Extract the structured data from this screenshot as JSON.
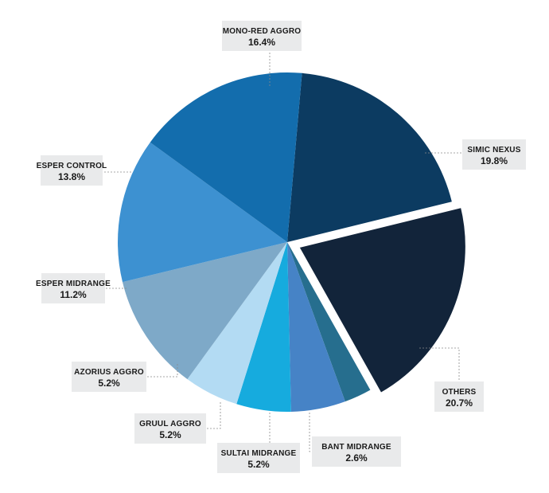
{
  "chart_data": {
    "type": "pie",
    "title": "",
    "slices": [
      {
        "label": "SIMIC NEXUS",
        "value": 19.8,
        "value_label": "19.8%",
        "color": "#0c3b61",
        "exploded": false
      },
      {
        "label": "OTHERS",
        "value": 20.7,
        "value_label": "20.7%",
        "color": "#12243a",
        "exploded": true
      },
      {
        "label": "BANT MIDRANGE",
        "value": 2.6,
        "value_label": "2.6%",
        "color": "#266e8e",
        "exploded": false
      },
      {
        "label": "SULTAI MIDRANGE",
        "value": 5.2,
        "value_label": "5.2%",
        "color": "#4683c6",
        "exploded": false
      },
      {
        "label": "GRUUL AGGRO",
        "value": 5.2,
        "value_label": "5.2%",
        "color": "#16abde",
        "exploded": false
      },
      {
        "label": "AZORIUS AGGRO",
        "value": 5.2,
        "value_label": "5.2%",
        "color": "#b3dbf3",
        "exploded": false
      },
      {
        "label": "ESPER MIDRANGE",
        "value": 11.2,
        "value_label": "11.2%",
        "color": "#7ea9c8",
        "exploded": false
      },
      {
        "label": "ESPER CONTROL",
        "value": 13.8,
        "value_label": "13.8%",
        "color": "#3d91d1",
        "exploded": false
      },
      {
        "label": "MONO-RED AGGRO",
        "value": 16.4,
        "value_label": "16.4%",
        "color": "#136dad",
        "exploded": false
      }
    ],
    "legend": "none"
  }
}
